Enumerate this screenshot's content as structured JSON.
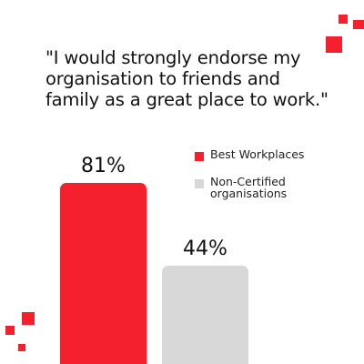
{
  "quote": "\"I would strongly endorse my organisation to friends and family as a great place to work.\"",
  "colors": {
    "best": "#f5202e",
    "non_certified": "#d8d8d8",
    "accent": "#f5202e",
    "text": "#111111"
  },
  "chart_data": {
    "type": "bar",
    "categories": [
      "Best Workplaces",
      "Non-Certified organisations"
    ],
    "values": [
      81,
      44
    ],
    "data_labels": [
      "81%",
      "44%"
    ],
    "ylim": [
      0,
      100
    ],
    "legend": [
      "Best Workplaces",
      "Non-Certified organisations"
    ],
    "legend_placement": "right",
    "grid": false
  }
}
